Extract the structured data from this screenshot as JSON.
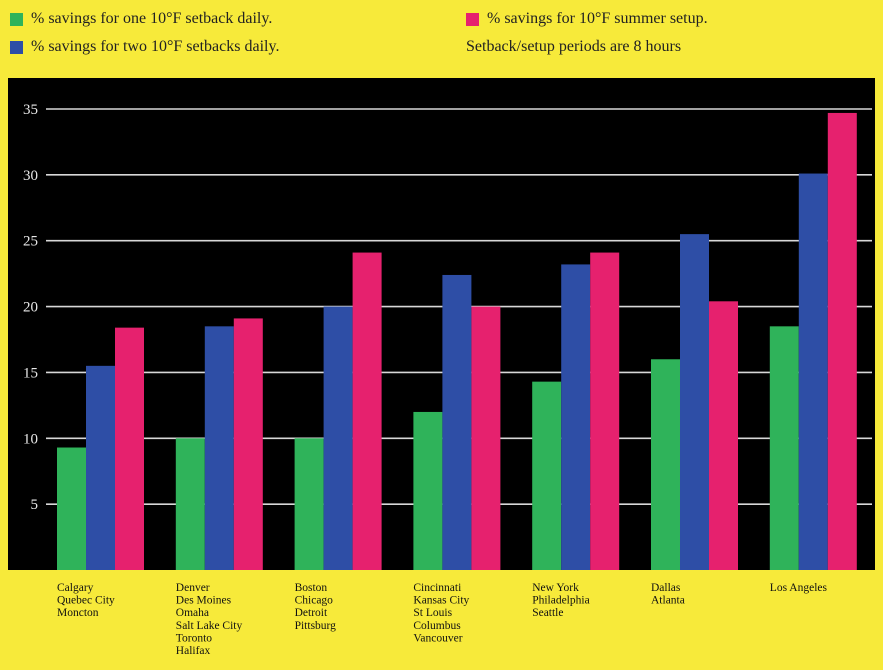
{
  "legend": {
    "items": [
      {
        "label": "% savings for one 10°F setback daily.",
        "color": "#2fb35a"
      },
      {
        "label": "% savings for two 10°F setbacks daily.",
        "color": "#2e4ea6"
      },
      {
        "label": "% savings for 10°F summer setup.",
        "color": "#e6216e"
      }
    ],
    "note": "Setback/setup periods are 8 hours"
  },
  "chart_data": {
    "type": "bar",
    "background": "#000000",
    "grid": true,
    "ylim": [
      0,
      35
    ],
    "yticks": [
      5,
      10,
      15,
      20,
      25,
      30,
      35
    ],
    "categories": [
      [
        "Calgary",
        "Quebec City",
        "Moncton"
      ],
      [
        "Denver",
        "Des Moines",
        "Omaha",
        "Salt Lake City",
        "Toronto",
        "Halifax"
      ],
      [
        "Boston",
        "Chicago",
        "Detroit",
        "Pittsburg"
      ],
      [
        "Cincinnati",
        "Kansas City",
        "St Louis",
        "Columbus",
        "Vancouver"
      ],
      [
        "New York",
        "Philadelphia",
        "Seattle"
      ],
      [
        "Dallas",
        "Atlanta"
      ],
      [
        "Los Angeles"
      ]
    ],
    "series": [
      {
        "name": "% savings for one 10°F setback daily.",
        "color": "#2fb35a",
        "values": [
          9.3,
          10,
          10,
          12,
          14.3,
          16,
          18.5
        ]
      },
      {
        "name": "% savings for two 10°F setbacks daily.",
        "color": "#2e4ea6",
        "values": [
          15.5,
          18.5,
          20,
          22.4,
          23.2,
          25.5,
          30.1
        ]
      },
      {
        "name": "% savings for 10°F summer setup.",
        "color": "#e6216e",
        "values": [
          18.4,
          19.1,
          24.1,
          20,
          24.1,
          20.4,
          34.7
        ]
      }
    ]
  }
}
